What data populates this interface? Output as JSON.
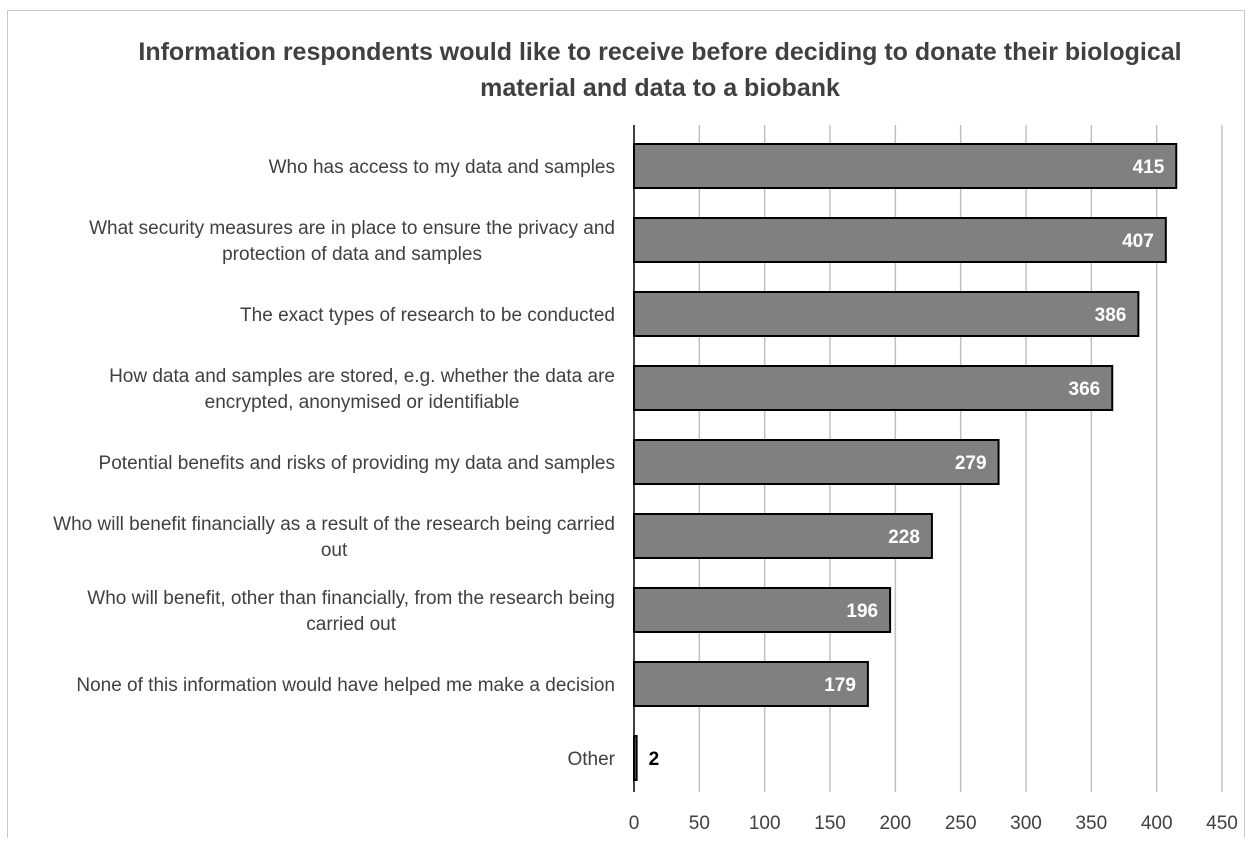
{
  "chart_data": {
    "type": "bar",
    "orientation": "horizontal",
    "title": "Information respondents would like to receive before deciding to donate their biological material and data to a biobank",
    "categories": [
      [
        "Who has access to my data and samples"
      ],
      [
        "What security measures are in place to ensure the privacy and",
        "protection of data and samples"
      ],
      [
        "The exact types of research to be conducted"
      ],
      [
        "How data and samples are stored, e.g. whether the data are",
        "encrypted, anonymised or identifiable"
      ],
      [
        "Potential benefits and risks of providing my data and samples"
      ],
      [
        "Who will benefit financially as a result of the research being carried",
        "out"
      ],
      [
        "Who will benefit, other than financially, from the research being",
        "carried out"
      ],
      [
        "None of this information would have helped me make a decision"
      ],
      [
        "Other"
      ]
    ],
    "values": [
      415,
      407,
      386,
      366,
      279,
      228,
      196,
      179,
      2
    ],
    "xlim": [
      0,
      450
    ],
    "xticks": [
      0,
      50,
      100,
      150,
      200,
      250,
      300,
      350,
      400,
      450
    ],
    "xlabel": "",
    "ylabel": "",
    "grid": "vertical",
    "legend": "none",
    "colors": {
      "bar_fill": "#808080",
      "bar_stroke": "#000000",
      "grid": "#c0c0c0",
      "axis": "#404040",
      "text": "#404040",
      "value_label_inside": "#ffffff",
      "value_label_outside": "#000000"
    }
  }
}
